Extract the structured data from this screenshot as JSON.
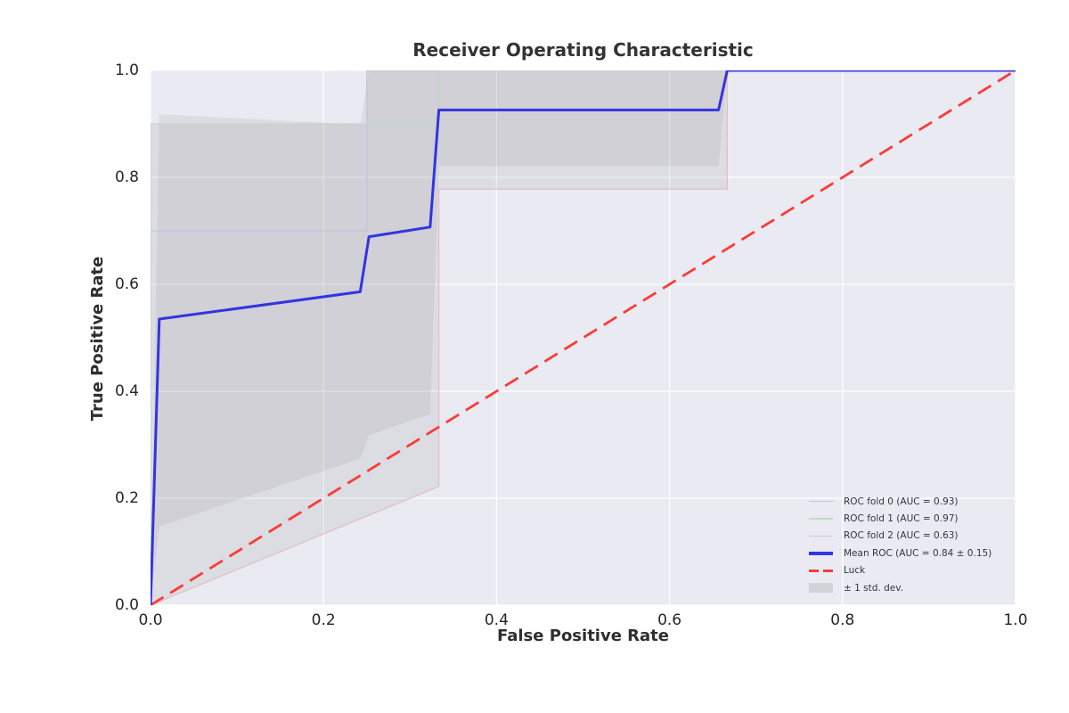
{
  "chart_data": {
    "type": "line",
    "title": "Receiver Operating Characteristic",
    "xlabel": "False Positive Rate",
    "ylabel": "True Positive Rate",
    "xlim": [
      0.0,
      1.0
    ],
    "ylim": [
      0.0,
      1.0
    ],
    "xticks": [
      "0.0",
      "0.2",
      "0.4",
      "0.6",
      "0.8",
      "1.0"
    ],
    "yticks": [
      "0.0",
      "0.2",
      "0.4",
      "0.6",
      "0.8",
      "1.0"
    ],
    "grid": true,
    "legend_position": "lower right",
    "plot_bg_color": "#eaeaf2",
    "grid_color": "#ffffff",
    "band_color": "#7f7f7f",
    "band_opacity": 0.12,
    "bands": [
      {
        "name": "std-dev-band",
        "points": [
          [
            0,
            0
          ],
          [
            0.0101,
            0.918
          ],
          [
            0.2424,
            0.899
          ],
          [
            0.2525,
            1.0
          ],
          [
            0.6667,
            1.0
          ],
          [
            0.6566,
            0.821
          ],
          [
            0.3333,
            0.821
          ],
          [
            0.3232,
            0.357
          ],
          [
            0.2525,
            0.318
          ],
          [
            0.2424,
            0.274
          ],
          [
            0.0101,
            0.147
          ]
        ]
      },
      {
        "name": "fold-envelope-band",
        "points": [
          [
            0,
            0
          ],
          [
            0,
            0.9
          ],
          [
            0.25,
            0.9
          ],
          [
            0.25,
            1.0
          ],
          [
            0.6667,
            1.0
          ],
          [
            0.6667,
            0.778
          ],
          [
            0.3333,
            0.778
          ],
          [
            0.3333,
            0.222
          ]
        ]
      }
    ],
    "series": [
      {
        "name": "roc-fold-0",
        "color": "#bcc7e0",
        "width": 1.3,
        "dash": null,
        "points": [
          [
            0,
            0
          ],
          [
            0,
            0.7
          ],
          [
            0.25,
            0.7
          ],
          [
            0.25,
            1.0
          ],
          [
            1,
            1
          ]
        ]
      },
      {
        "name": "roc-fold-1",
        "color": "#c0d8ca",
        "width": 1.3,
        "dash": null,
        "points": [
          [
            0,
            0
          ],
          [
            0,
            0.9
          ],
          [
            0.3333,
            0.9
          ],
          [
            0.3333,
            1.0
          ],
          [
            1,
            1
          ]
        ]
      },
      {
        "name": "roc-fold-2",
        "color": "#e2c0c7",
        "width": 1.3,
        "dash": null,
        "points": [
          [
            0,
            0
          ],
          [
            0.3333,
            0.222
          ],
          [
            0.3333,
            0.778
          ],
          [
            0.6667,
            0.778
          ],
          [
            0.6667,
            1.0
          ],
          [
            1,
            1
          ]
        ]
      },
      {
        "name": "luck",
        "color": "#f93b37",
        "width": 2.8,
        "dash": [
          17,
          9
        ],
        "points": [
          [
            0,
            0
          ],
          [
            1,
            1
          ]
        ]
      },
      {
        "name": "mean-roc",
        "color": "#3434e0",
        "width": 3.0,
        "dash": null,
        "points": [
          [
            0,
            0
          ],
          [
            0.0101,
            0.535
          ],
          [
            0.2424,
            0.586
          ],
          [
            0.2525,
            0.689
          ],
          [
            0.3232,
            0.707
          ],
          [
            0.3333,
            0.926
          ],
          [
            0.6566,
            0.926
          ],
          [
            0.6667,
            1.0
          ],
          [
            1,
            1
          ]
        ]
      }
    ],
    "legend": [
      {
        "label": "ROC fold 0 (AUC = 0.93)",
        "swatch": "line",
        "color": "#bcc7e0"
      },
      {
        "label": "ROC fold 1 (AUC = 0.97)",
        "swatch": "line",
        "color": "#c0d8ca"
      },
      {
        "label": "ROC fold 2 (AUC = 0.63)",
        "swatch": "line",
        "color": "#e2c0c7"
      },
      {
        "label": "Mean ROC (AUC = 0.84 ± 0.15)",
        "swatch": "line-thick",
        "color": "#3434e0"
      },
      {
        "label": "Luck",
        "swatch": "dashed",
        "color": "#f93b37"
      },
      {
        "label": "± 1 std. dev.",
        "swatch": "patch",
        "color": "#d2d3d8"
      }
    ]
  }
}
